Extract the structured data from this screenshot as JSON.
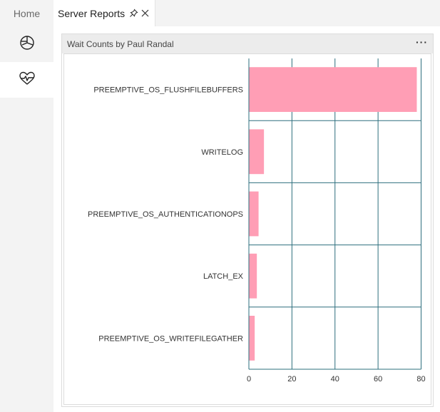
{
  "tabs": {
    "home_label": "Home",
    "reports_label": "Server Reports"
  },
  "icons": {
    "pin": "pin-icon",
    "close": "close-icon",
    "dashboard": "dashboard-icon",
    "health": "health-icon",
    "more": "more-icon"
  },
  "widget": {
    "title": "Wait Counts by Paul Randal",
    "menu_label": "···"
  },
  "colors": {
    "bar": "#ff9eb5",
    "grid": "#2e6f7e",
    "accent": "#1f1f1f"
  },
  "chart_data": {
    "type": "bar",
    "orientation": "horizontal",
    "categories": [
      "PREEMPTIVE_OS_FLUSHFILEBUFFERS",
      "WRITELOG",
      "PREEMPTIVE_OS_AUTHENTICATIONOPS",
      "LATCH_EX",
      "PREEMPTIVE_OS_WRITEFILEGATHER"
    ],
    "values": [
      78,
      7,
      4.5,
      3.7,
      2.7
    ],
    "xlim": [
      0,
      80
    ],
    "xticks": [
      0,
      20,
      40,
      60,
      80
    ],
    "grid": true,
    "legend": "none"
  }
}
